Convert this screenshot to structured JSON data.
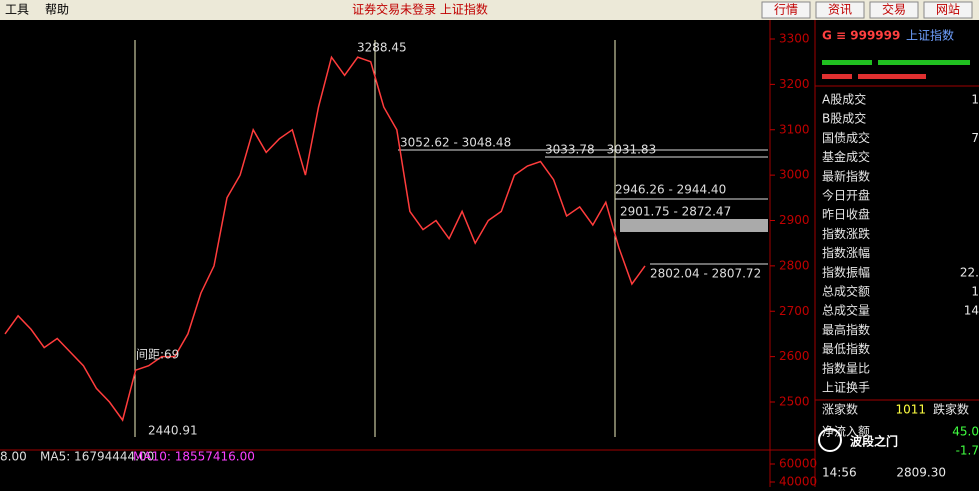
{
  "menu": {
    "items": [
      "工具",
      "帮助"
    ],
    "status": "证券交易未登录  上证指数",
    "buttons": [
      "行情",
      "资讯",
      "交易",
      "网站"
    ]
  },
  "chart_data": {
    "type": "line",
    "ylim": [
      2500,
      3300
    ],
    "yticks": [
      2500,
      2600,
      2700,
      2800,
      2900,
      3000,
      3100,
      3200,
      3300
    ],
    "series": [
      {
        "color": "#ff3c3c",
        "values": [
          2650,
          2690,
          2660,
          2620,
          2640,
          2610,
          2580,
          2530,
          2500,
          2460,
          2570,
          2580,
          2600,
          2600,
          2650,
          2740,
          2800,
          2950,
          3000,
          3100,
          3050,
          3080,
          3100,
          3000,
          3150,
          3260,
          3220,
          3260,
          3250,
          3150,
          3100,
          2920,
          2880,
          2900,
          2860,
          2920,
          2850,
          2900,
          2920,
          3000,
          3020,
          3030,
          2990,
          2910,
          2930,
          2890,
          2940,
          2840,
          2760,
          2800
        ]
      }
    ],
    "annotations": [
      "3288.45",
      "3052.62 - 3048.48",
      "3033.78 - 3031.83",
      "2946.26 - 2944.40",
      "2901.75 - 2872.47",
      "2802.04 - 2807.72",
      "间距:69",
      "2440.91"
    ],
    "indicator": {
      "prefix": "8.00",
      "ma5": "MA5: 16794444.00",
      "ma10": "MA10: 18557416.00"
    },
    "volume_ylim": [
      40000,
      60000
    ],
    "volume_yticks": [
      60000,
      40000
    ]
  },
  "panel": {
    "code": "G ≡ 999999",
    "name": "上证指数",
    "rows": [
      {
        "label": "A股成交",
        "value": "1"
      },
      {
        "label": "B股成交"
      },
      {
        "label": "国债成交",
        "value": "7"
      },
      {
        "label": "基金成交"
      },
      {
        "label": "最新指数"
      },
      {
        "label": "今日开盘"
      },
      {
        "label": "昨日收盘"
      },
      {
        "label": "指数涨跌"
      },
      {
        "label": "指数涨幅"
      },
      {
        "label": "指数振幅",
        "value": "22."
      },
      {
        "label": "总成交额",
        "value": "1"
      },
      {
        "label": "总成交量",
        "value": "14"
      },
      {
        "label": "最高指数"
      },
      {
        "label": "最低指数"
      },
      {
        "label": "指数量比"
      },
      {
        "label": "上证换手"
      }
    ],
    "rise_label": "涨家数",
    "rise_value": "1011",
    "fall_label": "跌家数",
    "flow_label": "净流入额",
    "flow_value": "45.0",
    "flow2_value": "-1.7",
    "time": "14:56",
    "price": "2809.30",
    "watermark": "波段之门"
  }
}
